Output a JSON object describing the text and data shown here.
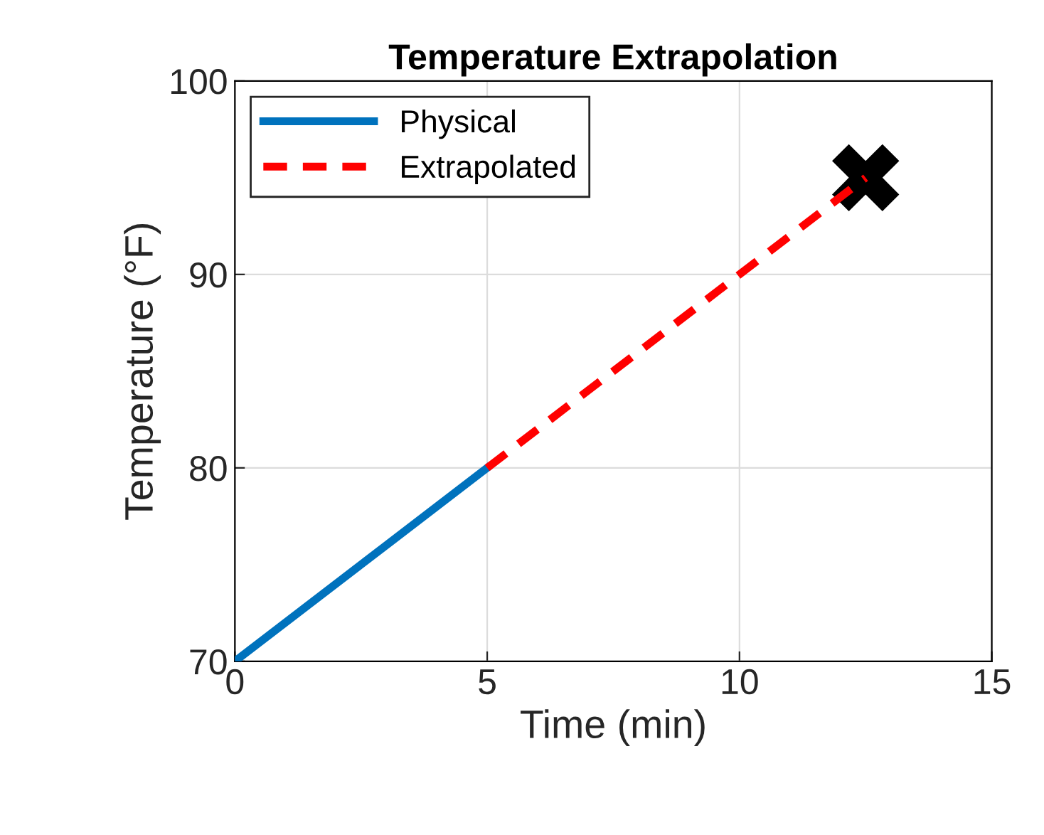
{
  "chart_data": {
    "type": "line",
    "title": "Temperature Extrapolation",
    "xlabel": "Time (min)",
    "ylabel": "Temperature (°F)",
    "xlim": [
      0,
      15
    ],
    "xticks": [
      0,
      5,
      10,
      15
    ],
    "ylim": [
      70,
      100
    ],
    "yticks": [
      70,
      80,
      90,
      100
    ],
    "grid": true,
    "legend": "top left",
    "series": [
      {
        "name": "Physical",
        "color": "#0072bd",
        "line_style": "solid",
        "x": [
          0,
          5
        ],
        "values": [
          70,
          80
        ]
      },
      {
        "name": "Extrapolated",
        "color": "#ff0000",
        "line_style": "dashed",
        "x": [
          5,
          12.5
        ],
        "values": [
          80,
          95
        ]
      },
      {
        "type": "scatter",
        "color": "#000000",
        "marker": "cross",
        "x": [
          12.5
        ],
        "values": [
          95
        ]
      }
    ]
  }
}
